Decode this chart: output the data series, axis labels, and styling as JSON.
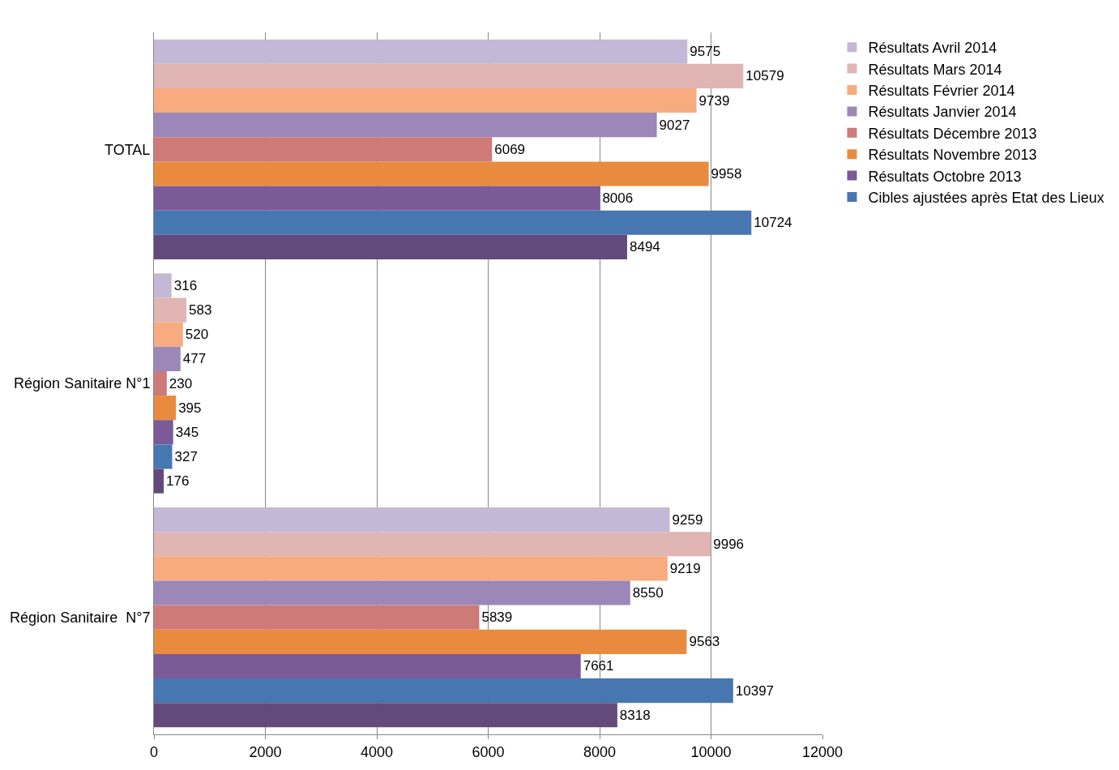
{
  "chart_data": {
    "type": "bar",
    "orientation": "horizontal",
    "categories": [
      "TOTAL",
      "Région Sanitaire N°1",
      "Région Sanitaire  N°7"
    ],
    "series": [
      {
        "name": "Résultats Avril 2014",
        "color": "#c3b9d6",
        "values": [
          9575,
          316,
          9259
        ]
      },
      {
        "name": "Résultats Mars 2014",
        "color": "#e0b5b4",
        "values": [
          10579,
          583,
          9996
        ]
      },
      {
        "name": "Résultats Février 2014",
        "color": "#f8ab7e",
        "values": [
          9739,
          520,
          9219
        ]
      },
      {
        "name": "Résultats Janvier 2014",
        "color": "#9b88b8",
        "values": [
          9027,
          477,
          8550
        ]
      },
      {
        "name": "Résultats Décembre 2013",
        "color": "#cd7a78",
        "values": [
          6069,
          230,
          5839
        ]
      },
      {
        "name": "Résultats Novembre 2013",
        "color": "#e98b3f",
        "values": [
          9958,
          395,
          9563
        ]
      },
      {
        "name": "Résultats Octobre 2013",
        "color": "#7a5b98",
        "values": [
          8006,
          345,
          7661
        ]
      },
      {
        "name": "Cibles ajustées après Etat des Lieux",
        "color": "#4677b0",
        "values": [
          10724,
          327,
          10397
        ]
      },
      {
        "color": "#634a7c",
        "values": [
          8494,
          176,
          8318
        ]
      }
    ],
    "xlim": [
      0,
      12000
    ],
    "xticks": [
      0,
      2000,
      4000,
      6000,
      8000,
      10000,
      12000
    ],
    "grid": "x",
    "legend": "right",
    "data_labels": true
  }
}
